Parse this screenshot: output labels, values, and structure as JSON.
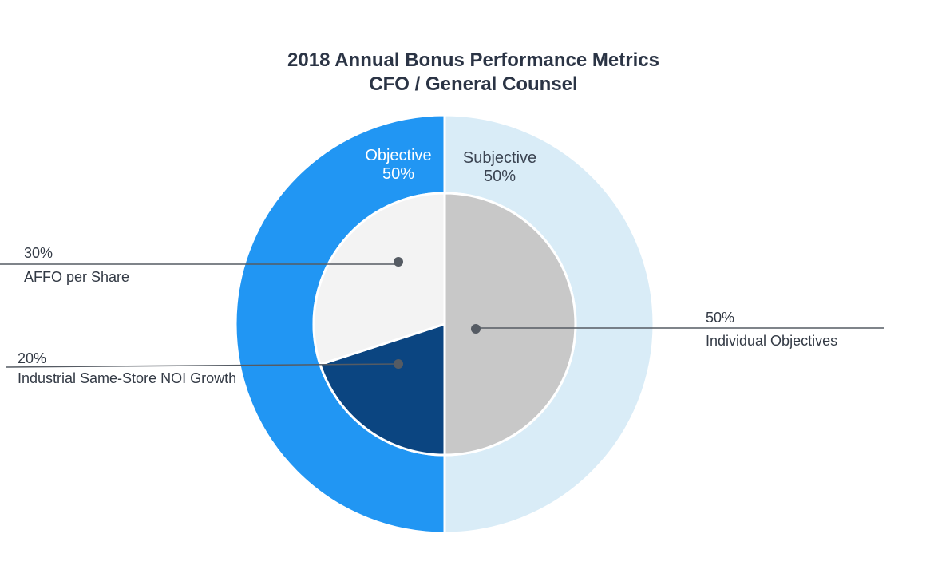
{
  "chart_data": {
    "type": "pie",
    "subtype": "nested-donut",
    "title": [
      "2018 Annual Bonus Performance Metrics",
      "CFO / General Counsel"
    ],
    "outer_ring": [
      {
        "name": "Objective",
        "value": 50,
        "label": "50%",
        "color": "#2196f3",
        "text_color": "#ffffff"
      },
      {
        "name": "Subjective",
        "value": 50,
        "label": "50%",
        "color": "#d9ecf7",
        "text_color": "#3b4452"
      }
    ],
    "inner_pie": [
      {
        "name": "Individual Objectives",
        "value": 50,
        "label": "50%",
        "color": "#c8c8c8"
      },
      {
        "name": "Industrial Same-Store NOI Growth",
        "value": 20,
        "label": "20%",
        "color": "#0b4581"
      },
      {
        "name": "AFFO per Share",
        "value": 30,
        "label": "30%",
        "color": "#f3f3f3"
      }
    ],
    "callouts": [
      {
        "pct": "30%",
        "name": "AFFO per Share"
      },
      {
        "pct": "20%",
        "name": "Industrial Same-Store NOI Growth"
      },
      {
        "pct": "50%",
        "name": "Individual Objectives"
      }
    ],
    "callout_color": "#555b63"
  }
}
